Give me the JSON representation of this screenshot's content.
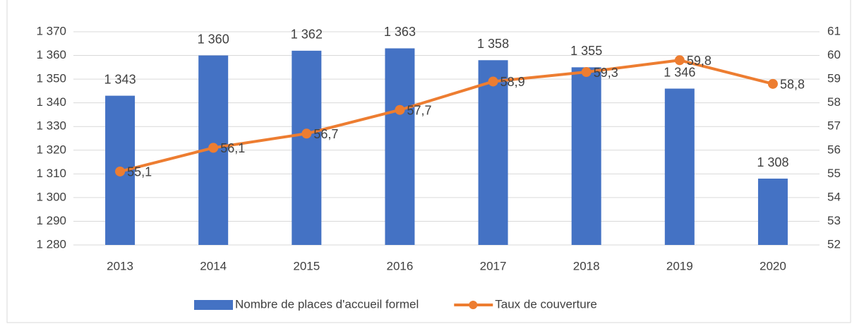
{
  "chart_data": {
    "type": "bar",
    "categories": [
      "2013",
      "2014",
      "2015",
      "2016",
      "2017",
      "2018",
      "2019",
      "2020"
    ],
    "series": [
      {
        "name": "Nombre de places d'accueil formel",
        "type": "bar",
        "color": "#4472c4",
        "axis": "y",
        "values": [
          1343,
          1360,
          1362,
          1363,
          1358,
          1355,
          1346,
          1308
        ],
        "value_labels": [
          "1 343",
          "1 360",
          "1 362",
          "1 363",
          "1 358",
          "1 355",
          "1 346",
          "1 308"
        ]
      },
      {
        "name": "Taux de couverture",
        "type": "line",
        "color": "#ed7d31",
        "axis": "y2",
        "values": [
          55.1,
          56.1,
          56.7,
          57.7,
          58.9,
          59.3,
          59.8,
          58.8
        ],
        "value_labels": [
          "55,1",
          "56,1",
          "56,7",
          "57,7",
          "58,9",
          "59,3",
          "59,8",
          "58,8"
        ]
      }
    ],
    "ylim": [
      1280,
      1370
    ],
    "yticks": [
      {
        "value": 1280,
        "label": "1 280"
      },
      {
        "value": 1290,
        "label": "1 290"
      },
      {
        "value": 1300,
        "label": "1 300"
      },
      {
        "value": 1310,
        "label": "1 310"
      },
      {
        "value": 1320,
        "label": "1 320"
      },
      {
        "value": 1330,
        "label": "1 330"
      },
      {
        "value": 1340,
        "label": "1 340"
      },
      {
        "value": 1350,
        "label": "1 350"
      },
      {
        "value": 1360,
        "label": "1 360"
      },
      {
        "value": 1370,
        "label": "1 370"
      }
    ],
    "y2lim": [
      52,
      61
    ],
    "y2ticks": [
      52,
      53,
      54,
      55,
      56,
      57,
      58,
      59,
      60,
      61
    ],
    "grid": true,
    "legend": "bottom"
  }
}
